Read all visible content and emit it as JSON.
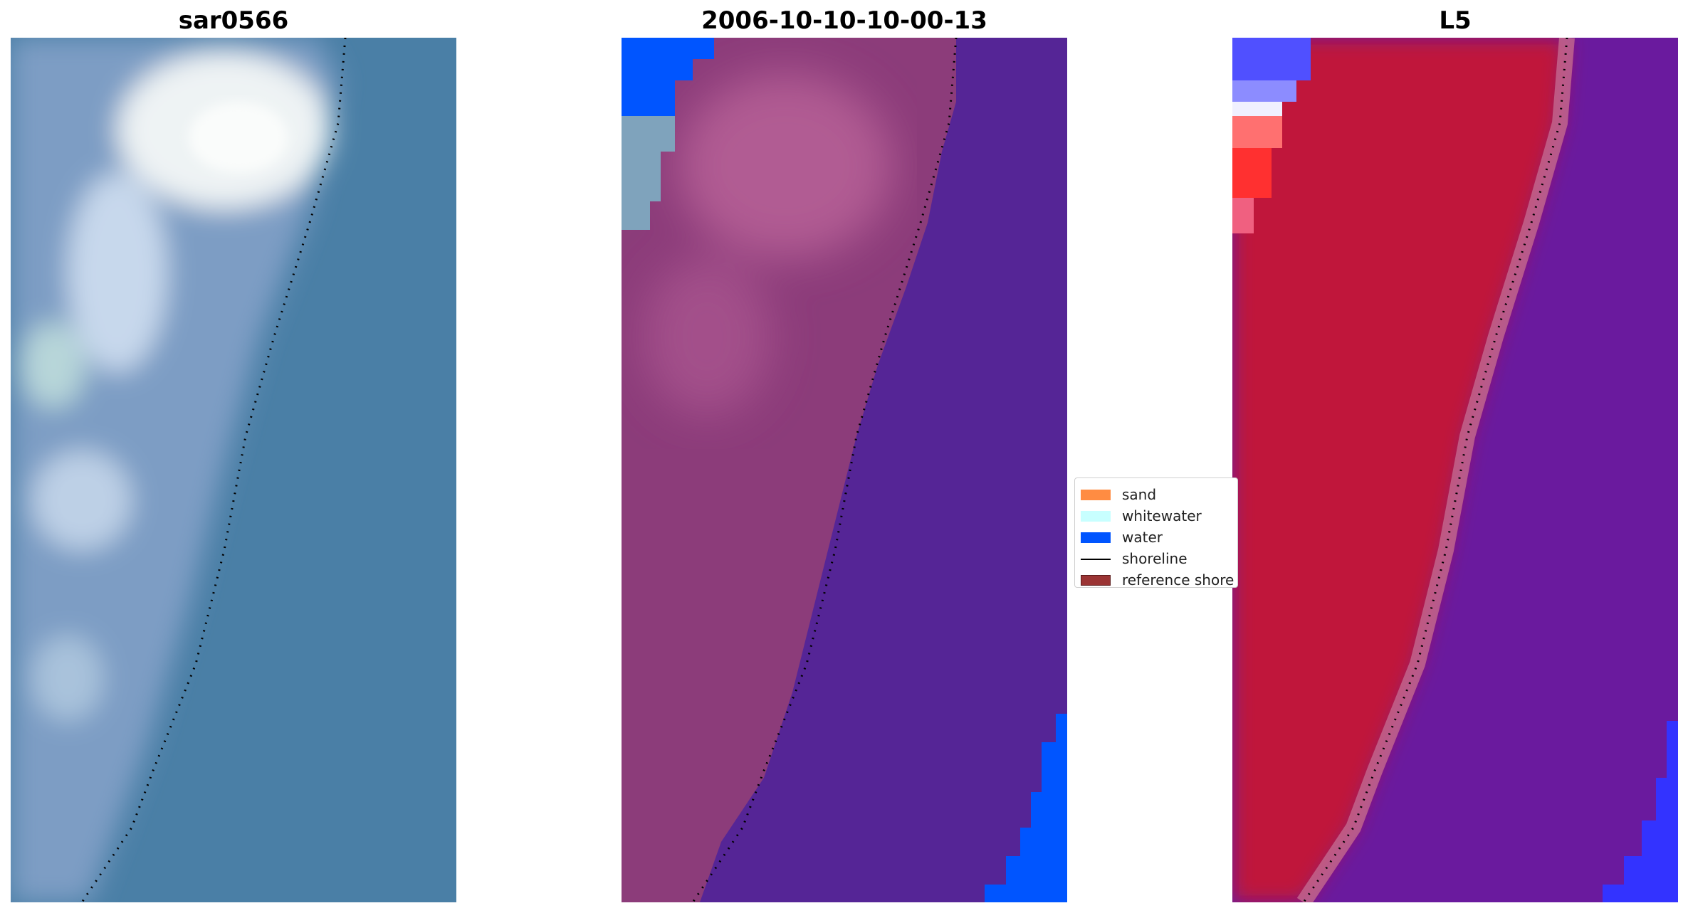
{
  "panels": [
    {
      "title": "sar0566"
    },
    {
      "title": "2006-10-10-10-00-13"
    },
    {
      "title": "L5"
    }
  ],
  "legend": {
    "items": [
      {
        "label": "sand",
        "color": "#FF8C42",
        "kind": "patch"
      },
      {
        "label": "whitewater",
        "color": "#C8FFFF",
        "kind": "patch"
      },
      {
        "label": "water",
        "color": "#0055FF",
        "kind": "patch"
      },
      {
        "label": "shoreline",
        "color": "#000000",
        "kind": "line"
      },
      {
        "label": "reference shore",
        "color": "#9B3434",
        "kind": "patch"
      }
    ]
  },
  "colors": {
    "rgb_sea": "#4A7FA6",
    "rgb_land": "#7D9DC4",
    "rgb_bright": "#F2F6F7",
    "class_sea": "#552596",
    "class_land": "#8C3C7A",
    "class_land_light": "#B55E95",
    "class_water": "#0055FF",
    "class_whitewater": "#7FA3BC",
    "index_land": "#C0143A",
    "index_sea": "#6A1A9E",
    "index_water": "#3333FF",
    "index_red_bright": "#FF3030"
  }
}
